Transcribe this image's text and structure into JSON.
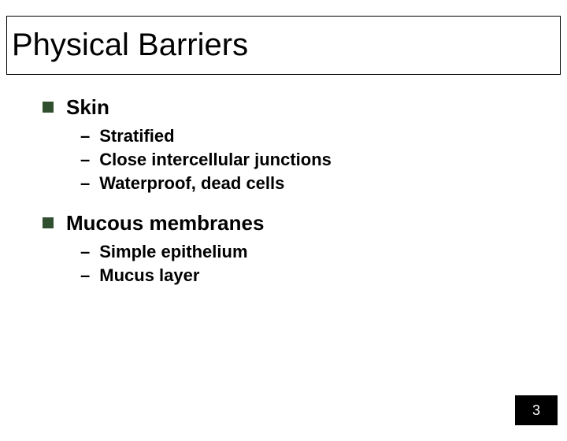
{
  "slide": {
    "title": "Physical Barriers",
    "page_number": "3",
    "bullets": [
      {
        "label": "Skin",
        "subitems": [
          "Stratified",
          "Close intercellular junctions",
          "Waterproof, dead cells"
        ]
      },
      {
        "label": "Mucous membranes",
        "subitems": [
          "Simple epithelium",
          "Mucus layer"
        ]
      }
    ],
    "colors": {
      "bullet_square": "#2f4f2f",
      "page_box_bg": "#000000",
      "page_num_text": "#ffffff",
      "text": "#000000",
      "background": "#ffffff"
    },
    "typography": {
      "title_fontsize": 40,
      "level1_fontsize": 26,
      "level2_fontsize": 22,
      "font_family": "Arial"
    }
  }
}
